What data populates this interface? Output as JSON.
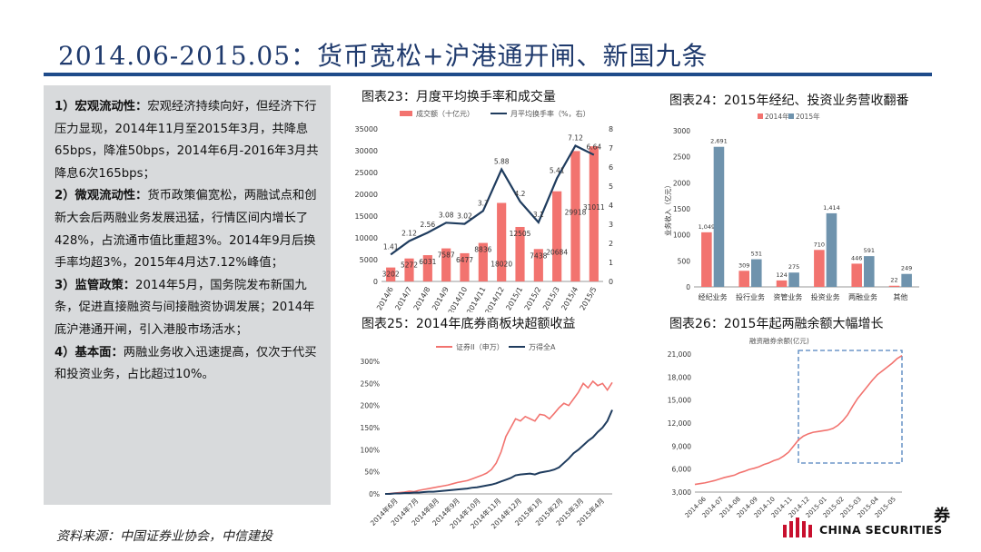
{
  "title": "2014.06-2015.05：货币宽松+沪港通开闸、新国九条",
  "bullets": [
    {
      "head": "1）宏观流动性：",
      "body": "宏观经济持续向好，但经济下行压力显现，2014年11月至2015年3月，共降息65bps，降准50bps，2014年6月-2016年3月共降息6次165bps；"
    },
    {
      "head": "2）微观流动性：",
      "body": "货币政策偏宽松，两融试点和创新大会后两融业务发展迅猛，行情区间内增长了428%，占流通市值比重超3%。2014年9月后换手率均超3%，2015年4月达7.12%峰值；"
    },
    {
      "head": "3）监管政策：",
      "body": "2014年5月，国务院发布新国九条，促进直接融资与间接融资协调发展；2014年底沪港通开闸，引入港股市场活水；"
    },
    {
      "head": "4）基本面：",
      "body": "两融业务收入迅速提高，仅次于代买和投资业务，占比超过10%。"
    }
  ],
  "source": "资料来源：中国证券业协会，中信建投",
  "logo": {
    "glyph": "券",
    "text": "CHINA SECURITIES"
  },
  "colors": {
    "red": "#f2736f",
    "blue": "#1f3c5e",
    "steel": "#6f93ad",
    "dash": "#4f81bd"
  },
  "chart_data": [
    {
      "type": "bar+line",
      "title": "图表23：月度平均换手率和成交量",
      "legend": [
        "成交额（十亿元）",
        "月平均换手率（%，右）"
      ],
      "categories": [
        "2014/6",
        "2014/7",
        "2014/8",
        "2014/9",
        "2014/10",
        "2014/11",
        "2014/12",
        "2015/1",
        "2015/2",
        "2015/3",
        "2015/4",
        "2015/5"
      ],
      "bar_values": [
        3202,
        5272,
        6031,
        7587,
        6477,
        8836,
        18020,
        12505,
        7438,
        20684,
        29918,
        31011
      ],
      "bar_labels": [
        "3202",
        "5272",
        "6031",
        "7587",
        "6477",
        "8836",
        "18020",
        "12505",
        "7438",
        "20684",
        "29918",
        "31011"
      ],
      "line_values": [
        1.41,
        2.12,
        2.56,
        3.08,
        3.02,
        3.7,
        5.88,
        4.2,
        3.1,
        5.41,
        7.12,
        6.64
      ],
      "line_labels": [
        "1.41",
        "2.12",
        "2.56",
        "3.08",
        "3.02",
        "3.7",
        "5.88",
        "4.2",
        "3.1",
        "5.41",
        "7.12",
        "6.64"
      ],
      "y_left_ticks": [
        "0",
        "5000",
        "10000",
        "15000",
        "20000",
        "25000",
        "30000",
        "35000"
      ],
      "y_right_ticks": [
        "0",
        "1",
        "2",
        "3",
        "4",
        "5",
        "6",
        "7",
        "8"
      ],
      "ylim_left": [
        0,
        35000
      ],
      "ylim_right": [
        0,
        8
      ]
    },
    {
      "type": "grouped-bar",
      "title": "图表24：2015年经纪、投资业务营收翻番",
      "legend": [
        "2014年",
        "2015年"
      ],
      "ylabel": "业务收入（亿元）",
      "categories": [
        "经纪业务",
        "投行业务",
        "资管业务",
        "投资业务",
        "两融业务",
        "其他"
      ],
      "series": [
        {
          "name": "2014年",
          "values": [
            1049,
            309,
            124,
            710,
            446,
            22
          ],
          "labels": [
            "1,049",
            "309",
            "124",
            "710",
            "446",
            "22"
          ]
        },
        {
          "name": "2015年",
          "values": [
            2691,
            531,
            275,
            1414,
            591,
            249
          ],
          "labels": [
            "2,691",
            "531",
            "275",
            "1,414",
            "591",
            "249"
          ]
        }
      ],
      "y_ticks": [
        "0",
        "500",
        "1000",
        "1500",
        "2000",
        "2500",
        "3000"
      ],
      "ylim": [
        0,
        3000
      ]
    },
    {
      "type": "line",
      "title": "图表25：2014年底券商板块超额收益",
      "legend": [
        "证券II（申万）",
        "万得全A"
      ],
      "x_ticks": [
        "2014年6月",
        "2014年7月",
        "2014年8月",
        "2014年9月",
        "2014年10月",
        "2014年11月",
        "2014年12月",
        "2015年1月",
        "2015年2月",
        "2015年3月",
        "2015年4月"
      ],
      "y_ticks": [
        "0%",
        "50%",
        "100%",
        "150%",
        "200%",
        "250%",
        "300%"
      ],
      "ylim": [
        0,
        300
      ],
      "series": [
        {
          "name": "证券II（申万）",
          "values": [
            0,
            1,
            2,
            3,
            4,
            6,
            5,
            8,
            10,
            12,
            14,
            16,
            18,
            20,
            23,
            26,
            28,
            30,
            34,
            38,
            42,
            47,
            55,
            70,
            95,
            130,
            150,
            170,
            165,
            175,
            170,
            165,
            180,
            178,
            170,
            182,
            195,
            205,
            200,
            215,
            230,
            250,
            240,
            255,
            245,
            250,
            235,
            252
          ]
        },
        {
          "name": "万得全A",
          "values": [
            0,
            0,
            1,
            1,
            2,
            2,
            3,
            3,
            4,
            5,
            5,
            6,
            7,
            8,
            9,
            10,
            11,
            12,
            14,
            15,
            17,
            19,
            21,
            24,
            28,
            32,
            36,
            42,
            44,
            45,
            46,
            44,
            48,
            50,
            52,
            55,
            60,
            70,
            80,
            92,
            100,
            110,
            120,
            128,
            140,
            150,
            165,
            190
          ]
        }
      ]
    },
    {
      "type": "line",
      "title": "图表26：2015年起两融余额大幅增长",
      "subtitle": "融资融券余额(亿元)",
      "x_ticks": [
        "2014-06",
        "2014-07",
        "2014-08",
        "2014-09",
        "2014-10",
        "2014-11",
        "2014-12",
        "2015-01",
        "2015-02",
        "2015-03",
        "2015-04",
        "2015-05"
      ],
      "y_ticks": [
        "3,000",
        "6,000",
        "9,000",
        "12,000",
        "15,000",
        "18,000",
        "21,000"
      ],
      "ylim": [
        3000,
        21000
      ],
      "series": [
        {
          "name": "融资融券余额",
          "values": [
            4000,
            4100,
            4200,
            4350,
            4500,
            4700,
            4900,
            5050,
            5200,
            5500,
            5700,
            5950,
            6100,
            6300,
            6600,
            6800,
            7100,
            7300,
            7700,
            8200,
            9000,
            9800,
            10300,
            10600,
            10800,
            10900,
            11000,
            11100,
            11300,
            11700,
            12300,
            13100,
            14200,
            15200,
            16000,
            16800,
            17600,
            18300,
            18800,
            19300,
            19800,
            20400,
            20800
          ]
        }
      ],
      "highlight_range": [
        "2014-12",
        "2015-05"
      ]
    }
  ]
}
